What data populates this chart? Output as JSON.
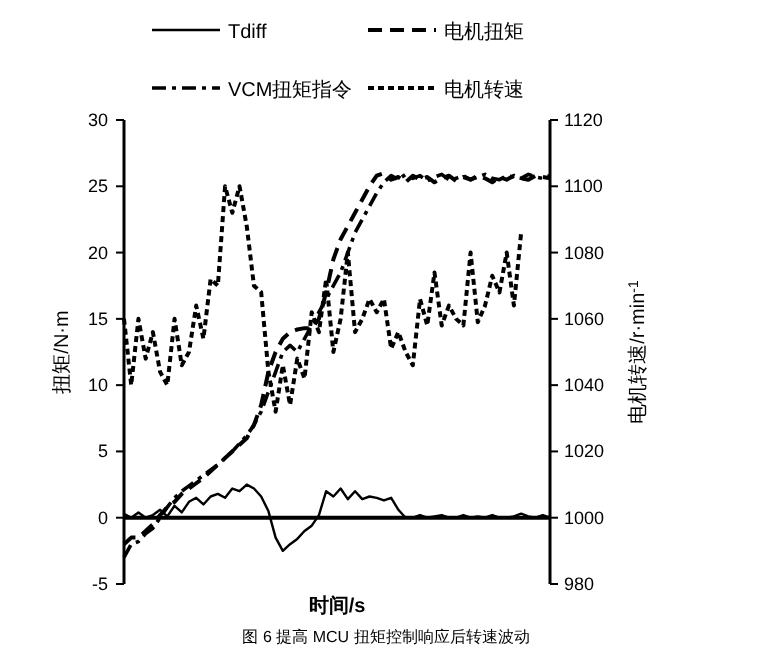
{
  "chart_data": {
    "type": "line",
    "xlabel": "时间/s",
    "ylabel": "扭矩/N·m",
    "y2label": "电机转速/r·min$^{-1}$",
    "categories": [
      null,
      null,
      null,
      null,
      null,
      null,
      null,
      null,
      null,
      null,
      null,
      null,
      null,
      null,
      null,
      null,
      null,
      null,
      null,
      null,
      null,
      null,
      null,
      null,
      null,
      null,
      null,
      null,
      null,
      null,
      null,
      null,
      null,
      null,
      null,
      null,
      null,
      null,
      null,
      null,
      null,
      null,
      null,
      null,
      null,
      null,
      null,
      null,
      null,
      null,
      null,
      null,
      null,
      null,
      null,
      null,
      null,
      null,
      null,
      null
    ],
    "ylim": [
      -5,
      30
    ],
    "yticks": [
      -5,
      0,
      5,
      10,
      15,
      20,
      25,
      30
    ],
    "y2lim": [
      980,
      1120
    ],
    "y2ticks": [
      980,
      1000,
      1020,
      1040,
      1060,
      1080,
      1100,
      1120
    ],
    "legend": "top",
    "tick_labels": "y",
    "marker": "none",
    "series": [
      {
        "name": "Tdiff",
        "color": "#000000",
        "line_style": "solid",
        "values": [
          0.3,
          0,
          0.4,
          0,
          0.2,
          0.6,
          0.1,
          0.9,
          0.4,
          1.2,
          1.5,
          1.0,
          1.6,
          1.8,
          1.5,
          2.2,
          2.0,
          2.5,
          2.2,
          1.6,
          0.5,
          -1.5,
          -2.5,
          -2.0,
          -1.6,
          -1.0,
          -0.6,
          0.2,
          2.0,
          1.6,
          2.2,
          1.4,
          2.0,
          1.4,
          1.6,
          1.5,
          1.3,
          1.5,
          0.6,
          0,
          0,
          0.2,
          0,
          0.1,
          0.2,
          0,
          0,
          0.2,
          0,
          0.1,
          0,
          0.2,
          0,
          0,
          0.1,
          0.3,
          0.1,
          0,
          0.2,
          0
        ]
      },
      {
        "name": "电机扭矩",
        "color": "#000000",
        "line_style": "dashed",
        "values": [
          -2,
          -1.5,
          -1.5,
          -1,
          -0.5,
          0.2,
          0.8,
          1.2,
          1.8,
          2.2,
          2.6,
          3.0,
          3.5,
          4.0,
          4.5,
          5,
          5.5,
          6,
          7,
          8.5,
          11,
          12.5,
          13.5,
          14,
          14.2,
          14.3,
          14.3,
          15,
          17,
          19.5,
          21,
          22,
          23,
          24,
          25,
          25.8,
          26,
          25.5,
          25.7,
          25.3,
          25.8,
          25.5,
          25.7,
          25.3,
          25.6,
          25.8,
          25.4,
          25.7,
          25.5,
          25.8,
          25.6,
          25.3,
          25.7,
          25.5,
          25.8,
          25.6,
          25.5,
          25.8,
          25.7,
          25.6
        ]
      },
      {
        "name": "VCM扭矩指令",
        "color": "#000000",
        "line_style": "dashdot",
        "values": [
          -3,
          -2,
          -1.8,
          -1.2,
          -0.8,
          0,
          0.8,
          1.5,
          2.0,
          2.4,
          2.8,
          3.2,
          3.6,
          4.0,
          4.5,
          5.0,
          5.6,
          6.2,
          7,
          8,
          9.5,
          11,
          12.5,
          13,
          12.5,
          13.5,
          14.5,
          15.5,
          16.5,
          17.5,
          18.5,
          20,
          21.5,
          22.5,
          23.5,
          24.5,
          25.3,
          25.8,
          25.5,
          25.9,
          25.6,
          25.8,
          25.4,
          25.7,
          25.9,
          25.5,
          25.6,
          25.8,
          25.5,
          25.7,
          25.9,
          25.6,
          25.5,
          25.8,
          25.7,
          25.6,
          25.9,
          25.7,
          25.6,
          25.8
        ]
      },
      {
        "name": "电机转速",
        "color": "#000000",
        "line_style": "dotted",
        "axis": "y2",
        "values": [
          1060,
          1040,
          1060,
          1048,
          1056,
          1044,
          1040,
          1060,
          1046,
          1050,
          1064,
          1054,
          1072,
          1070,
          1100,
          1092,
          1100,
          1088,
          1070,
          1068,
          1044,
          1032,
          1046,
          1034,
          1048,
          1042,
          1062,
          1056,
          1072,
          1050,
          1060,
          1080,
          1056,
          1060,
          1066,
          1062,
          1066,
          1051,
          1056,
          1050,
          1046,
          1066,
          1058,
          1074,
          1058,
          1064,
          1060,
          1058,
          1080,
          1059,
          1064,
          1073,
          1068,
          1080,
          1064,
          1086,
          null,
          null,
          null,
          null
        ]
      }
    ],
    "annotations": [
      "图 6 提高 MCU 扭矩控制响应后转速波动"
    ]
  }
}
